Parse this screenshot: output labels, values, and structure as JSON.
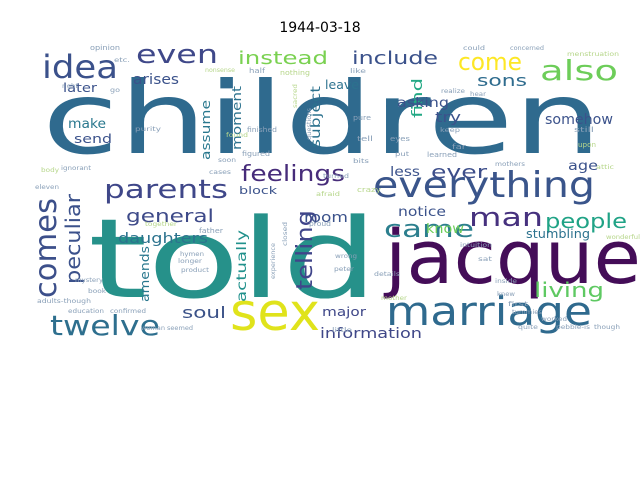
{
  "title": "1944-03-18",
  "colors": {
    "background": "#ffffff",
    "title_text": "#000000"
  },
  "words": [
    {
      "text": "children",
      "color": "#2f6a8e"
    },
    {
      "text": "told",
      "color": "#26918a"
    },
    {
      "text": "jacque",
      "color": "#440d58"
    },
    {
      "text": "sex",
      "color": "#e0e31b"
    },
    {
      "text": "marriage",
      "color": "#2f6a8e"
    },
    {
      "text": "everything",
      "color": "#3a558b"
    },
    {
      "text": "parents",
      "color": "#3f4789"
    },
    {
      "text": "twelve",
      "color": "#2e6f8e"
    },
    {
      "text": "came",
      "color": "#2c7f8e"
    },
    {
      "text": "idea",
      "color": "#3b518b"
    },
    {
      "text": "even",
      "color": "#3f4889"
    },
    {
      "text": "also",
      "color": "#6dcd59"
    },
    {
      "text": "come",
      "color": "#fde725"
    },
    {
      "text": "comes",
      "color": "#3c4f8a"
    },
    {
      "text": "feelings",
      "color": "#472c7a"
    },
    {
      "text": "man",
      "color": "#46317e"
    },
    {
      "text": "people",
      "color": "#20a386"
    },
    {
      "text": "living",
      "color": "#5ec962"
    },
    {
      "text": "peculiar",
      "color": "#3b518b"
    },
    {
      "text": "telling",
      "color": "#40458a"
    },
    {
      "text": "instead",
      "color": "#7ad151"
    },
    {
      "text": "include",
      "color": "#3b528b"
    },
    {
      "text": "general",
      "color": "#3e4a89"
    },
    {
      "text": "soul",
      "color": "#3b5288"
    },
    {
      "text": "sons",
      "color": "#2f6c8e"
    },
    {
      "text": "information",
      "color": "#3f4788"
    },
    {
      "text": "ever",
      "color": "#3d4e8a"
    },
    {
      "text": "room",
      "color": "#3b528b"
    },
    {
      "text": "daughters",
      "color": "#2c738e"
    },
    {
      "text": "amends",
      "color": "#2a788e"
    },
    {
      "text": "actually",
      "color": "#21918c"
    },
    {
      "text": "major",
      "color": "#3f4788"
    },
    {
      "text": "notice",
      "color": "#3b528b"
    },
    {
      "text": "know",
      "color": "#6ece58"
    },
    {
      "text": "find",
      "color": "#22a884"
    },
    {
      "text": "try",
      "color": "#3b528b"
    },
    {
      "text": "less",
      "color": "#3b528b"
    },
    {
      "text": "age",
      "color": "#3b528b"
    },
    {
      "text": "subject",
      "color": "#2c728e"
    },
    {
      "text": "moment",
      "color": "#2c728e"
    },
    {
      "text": "assume",
      "color": "#2a788e"
    },
    {
      "text": "arises",
      "color": "#3b528b"
    },
    {
      "text": "later",
      "color": "#3b528b"
    },
    {
      "text": "make",
      "color": "#2a788e"
    },
    {
      "text": "send",
      "color": "#3b528b"
    },
    {
      "text": "block",
      "color": "#3b528b"
    },
    {
      "text": "asking",
      "color": "#3b528b"
    },
    {
      "text": "leave",
      "color": "#2c728e"
    },
    {
      "text": "somehow",
      "color": "#3b528b"
    },
    {
      "text": "stumbling",
      "color": "#2c728e"
    },
    {
      "text": "opinion",
      "color": "#8aa0b8"
    },
    {
      "text": "etc.",
      "color": "#8aa0b8"
    },
    {
      "text": "right",
      "color": "#8aa0b8"
    },
    {
      "text": "half",
      "color": "#8aa0b8"
    },
    {
      "text": "nonsense",
      "color": "#b6d68a"
    },
    {
      "text": "sacred",
      "color": "#b6d68a"
    },
    {
      "text": "nothing",
      "color": "#b6d68a"
    },
    {
      "text": "purity",
      "color": "#8aa0b8"
    },
    {
      "text": "finished",
      "color": "#8aa0b8"
    },
    {
      "text": "figured",
      "color": "#8aa0b8"
    },
    {
      "text": "could",
      "color": "#8aa0b8"
    },
    {
      "text": "concerned",
      "color": "#8aa0b8"
    },
    {
      "text": "menstruation",
      "color": "#b6d68a"
    },
    {
      "text": "pure",
      "color": "#8aa0b8"
    },
    {
      "text": "tell",
      "color": "#8aa0b8"
    },
    {
      "text": "eyes",
      "color": "#8aa0b8"
    },
    {
      "text": "realize",
      "color": "#8aa0b8"
    },
    {
      "text": "keep",
      "color": "#8aa0b8"
    },
    {
      "text": "learned",
      "color": "#8aa0b8"
    },
    {
      "text": "far",
      "color": "#8aa0b8"
    },
    {
      "text": "put",
      "color": "#8aa0b8"
    },
    {
      "text": "bits",
      "color": "#8aa0b8"
    },
    {
      "text": "questions",
      "color": "#8aa0b8"
    },
    {
      "text": "still",
      "color": "#8aa0b8"
    },
    {
      "text": "upon",
      "color": "#b6d68a"
    },
    {
      "text": "attic",
      "color": "#b6d68a"
    },
    {
      "text": "mothers",
      "color": "#8aa0b8"
    },
    {
      "text": "body",
      "color": "#b6d68a"
    },
    {
      "text": "ignorant",
      "color": "#8aa0b8"
    },
    {
      "text": "eleven",
      "color": "#8aa0b8"
    },
    {
      "text": "soon",
      "color": "#8aa0b8"
    },
    {
      "text": "cases",
      "color": "#8aa0b8"
    },
    {
      "text": "crazy",
      "color": "#b6d68a"
    },
    {
      "text": "turned",
      "color": "#8aa0b8"
    },
    {
      "text": "afraid",
      "color": "#b6d68a"
    },
    {
      "text": "proud",
      "color": "#8aa0b8"
    },
    {
      "text": "father",
      "color": "#8aa0b8"
    },
    {
      "text": "together",
      "color": "#b6d68a"
    },
    {
      "text": "hymen",
      "color": "#8aa0b8"
    },
    {
      "text": "closed",
      "color": "#8aa0b8"
    },
    {
      "text": "experience",
      "color": "#8aa0b8"
    },
    {
      "text": "wrong",
      "color": "#8aa0b8"
    },
    {
      "text": "peter",
      "color": "#8aa0b8"
    },
    {
      "text": "intuition",
      "color": "#8aa0b8"
    },
    {
      "text": "sat",
      "color": "#8aa0b8"
    },
    {
      "text": "wonderful",
      "color": "#b6d68a"
    },
    {
      "text": "longer",
      "color": "#8aa0b8"
    },
    {
      "text": "product",
      "color": "#8aa0b8"
    },
    {
      "text": "book",
      "color": "#8aa0b8"
    },
    {
      "text": "adults-though",
      "color": "#8aa0b8"
    },
    {
      "text": "education",
      "color": "#8aa0b8"
    },
    {
      "text": "confirmed",
      "color": "#8aa0b8"
    },
    {
      "text": "mystery",
      "color": "#8aa0b8"
    },
    {
      "text": "woman",
      "color": "#8aa0b8"
    },
    {
      "text": "seemed",
      "color": "#8aa0b8"
    },
    {
      "text": "little",
      "color": "#8aa0b8"
    },
    {
      "text": "mother",
      "color": "#b6d68a"
    },
    {
      "text": "details",
      "color": "#8aa0b8"
    },
    {
      "text": "first",
      "color": "#8aa0b8"
    },
    {
      "text": "tummies",
      "color": "#8aa0b8"
    },
    {
      "text": "worked",
      "color": "#8aa0b8"
    },
    {
      "text": "quite",
      "color": "#8aa0b8"
    },
    {
      "text": "pebble-is",
      "color": "#8aa0b8"
    },
    {
      "text": "though",
      "color": "#8aa0b8"
    },
    {
      "text": "knew",
      "color": "#8aa0b8"
    },
    {
      "text": "inside",
      "color": "#8aa0b8"
    },
    {
      "text": "found",
      "color": "#b6d68a"
    },
    {
      "text": "go",
      "color": "#8aa0b8"
    },
    {
      "text": "like",
      "color": "#8aa0b8"
    },
    {
      "text": "hear",
      "color": "#8aa0b8"
    }
  ]
}
